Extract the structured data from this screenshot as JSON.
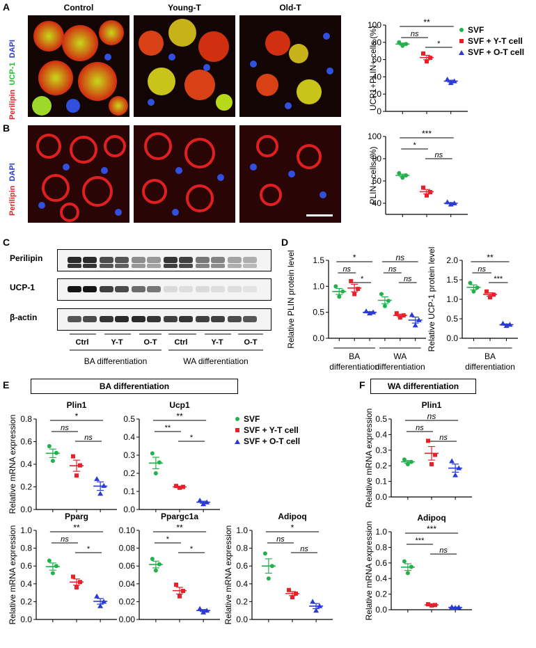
{
  "panels": {
    "A": "A",
    "B": "B",
    "C": "C",
    "D": "D",
    "E": "E",
    "F": "F"
  },
  "micro": {
    "col_titles": [
      "Control",
      "Young-T",
      "Old-T"
    ],
    "stain_a": {
      "dapi": "DAPI",
      "ucp1": "UCP-1",
      "perilipin": "Perilipin"
    },
    "stain_b": {
      "dapi": "DAPI",
      "perilipin": "Perilipin"
    }
  },
  "legend": {
    "entries": [
      "SVF",
      "SVF + Y-T cell",
      "SVF + O-T cell"
    ],
    "colors": [
      "#22b14c",
      "#e8202a",
      "#2a3ad4"
    ]
  },
  "blot": {
    "rows": [
      "Perilipin",
      "UCP-1",
      "β-actin"
    ],
    "lanes": [
      "Ctrl",
      "Y-T",
      "O-T",
      "Ctrl",
      "Y-T",
      "O-T"
    ],
    "groups": [
      "BA differentiation",
      "WA differentiation"
    ]
  },
  "box_titles": {
    "E": "BA differentiation",
    "F": "WA differentiation"
  },
  "chart_data": [
    {
      "id": "A_ucp1",
      "type": "scatter",
      "title": "",
      "ylabel": "UCP1+PLIN+ cells (%)",
      "ylim": [
        0,
        100
      ],
      "yticks": [
        0,
        20,
        40,
        60,
        80,
        100
      ],
      "series": [
        {
          "name": "SVF",
          "values": [
            80,
            76,
            78
          ]
        },
        {
          "name": "SVF + Y-T cell",
          "values": [
            67,
            58,
            62
          ]
        },
        {
          "name": "SVF + O-T cell",
          "values": [
            37,
            33,
            35
          ]
        }
      ],
      "sig": [
        {
          "from": 0,
          "to": 2,
          "label": "**"
        },
        {
          "from": 0,
          "to": 1,
          "label": "ns"
        },
        {
          "from": 1,
          "to": 2,
          "label": "*"
        }
      ]
    },
    {
      "id": "B_plin",
      "type": "scatter",
      "title": "",
      "ylabel": "PLIN+ cells (%)",
      "ylim": [
        30,
        100
      ],
      "yticks": [
        40,
        60,
        80,
        100
      ],
      "series": [
        {
          "name": "SVF",
          "values": [
            67,
            63,
            65
          ]
        },
        {
          "name": "SVF + Y-T cell",
          "values": [
            54,
            47,
            50
          ]
        },
        {
          "name": "SVF + O-T cell",
          "values": [
            41,
            39,
            40
          ]
        }
      ],
      "sig": [
        {
          "from": 0,
          "to": 2,
          "label": "***"
        },
        {
          "from": 0,
          "to": 1,
          "label": "*"
        },
        {
          "from": 1,
          "to": 2,
          "label": "ns"
        }
      ]
    },
    {
      "id": "D_plin",
      "type": "scatter",
      "title": "",
      "ylabel": "Relative PLIN protein level",
      "ylim": [
        0,
        1.5
      ],
      "yticks": [
        0.0,
        0.5,
        1.0,
        1.5
      ],
      "xgroups": [
        "BA differentiation",
        "WA differentiation"
      ],
      "series": [
        {
          "name": "SVF BA",
          "values": [
            1.0,
            0.8,
            0.9
          ]
        },
        {
          "name": "Y-T BA",
          "values": [
            1.1,
            0.85,
            0.95
          ]
        },
        {
          "name": "O-T BA",
          "values": [
            0.52,
            0.48,
            0.5
          ]
        },
        {
          "name": "SVF WA",
          "values": [
            0.85,
            0.62,
            0.72
          ]
        },
        {
          "name": "Y-T WA",
          "values": [
            0.48,
            0.4,
            0.44
          ]
        },
        {
          "name": "O-T WA",
          "values": [
            0.45,
            0.25,
            0.35
          ]
        }
      ],
      "sig": [
        {
          "from": 0,
          "to": 2,
          "label": "*"
        },
        {
          "from": 0,
          "to": 1,
          "label": "ns"
        },
        {
          "from": 1,
          "to": 2,
          "label": "*"
        },
        {
          "from": 3,
          "to": 5,
          "label": "ns"
        },
        {
          "from": 3,
          "to": 4,
          "label": "ns"
        },
        {
          "from": 4,
          "to": 5,
          "label": "ns"
        }
      ]
    },
    {
      "id": "D_ucp1",
      "type": "scatter",
      "title": "",
      "ylabel": "Relative UCP-1 protein level",
      "ylim": [
        0,
        2.0
      ],
      "yticks": [
        0.0,
        0.5,
        1.0,
        1.5,
        2.0
      ],
      "xgroups": [
        "BA differentiation"
      ],
      "series": [
        {
          "name": "SVF",
          "values": [
            1.42,
            1.2,
            1.3
          ]
        },
        {
          "name": "SVF + Y-T cell",
          "values": [
            1.2,
            1.05,
            1.12
          ]
        },
        {
          "name": "SVF + O-T cell",
          "values": [
            0.38,
            0.32,
            0.35
          ]
        }
      ],
      "sig": [
        {
          "from": 0,
          "to": 2,
          "label": "**"
        },
        {
          "from": 0,
          "to": 1,
          "label": "ns"
        },
        {
          "from": 1,
          "to": 2,
          "label": "***"
        }
      ]
    },
    {
      "id": "E_plin1",
      "type": "scatter",
      "title": "Plin1",
      "ylabel": "Relative mRNA expression",
      "ylim": [
        0,
        0.8
      ],
      "yticks": [
        0.0,
        0.2,
        0.4,
        0.6,
        0.8
      ],
      "series": [
        {
          "name": "SVF",
          "values": [
            0.56,
            0.43,
            0.5
          ]
        },
        {
          "name": "SVF + Y-T cell",
          "values": [
            0.47,
            0.3,
            0.39
          ]
        },
        {
          "name": "SVF + O-T cell",
          "values": [
            0.27,
            0.14,
            0.21
          ]
        }
      ],
      "sig": [
        {
          "from": 0,
          "to": 2,
          "label": "*"
        },
        {
          "from": 0,
          "to": 1,
          "label": "ns"
        },
        {
          "from": 1,
          "to": 2,
          "label": "ns"
        }
      ]
    },
    {
      "id": "E_ucp1",
      "type": "scatter",
      "title": "Ucp1",
      "ylabel": "",
      "ylim": [
        0,
        0.5
      ],
      "yticks": [
        0.0,
        0.1,
        0.2,
        0.3,
        0.4,
        0.5
      ],
      "series": [
        {
          "name": "SVF",
          "values": [
            0.31,
            0.2,
            0.26
          ]
        },
        {
          "name": "SVF + Y-T cell",
          "values": [
            0.13,
            0.12,
            0.125
          ]
        },
        {
          "name": "SVF + O-T cell",
          "values": [
            0.05,
            0.03,
            0.04
          ]
        }
      ],
      "sig": [
        {
          "from": 0,
          "to": 2,
          "label": "**"
        },
        {
          "from": 0,
          "to": 1,
          "label": "**"
        },
        {
          "from": 1,
          "to": 2,
          "label": "*"
        }
      ]
    },
    {
      "id": "E_pparg",
      "type": "scatter",
      "title": "Pparg",
      "ylabel": "Relative mRNA expression",
      "ylim": [
        0,
        1.0
      ],
      "yticks": [
        0.0,
        0.2,
        0.4,
        0.6,
        0.8,
        1.0
      ],
      "series": [
        {
          "name": "SVF",
          "values": [
            0.66,
            0.52,
            0.6
          ]
        },
        {
          "name": "SVF + Y-T cell",
          "values": [
            0.48,
            0.36,
            0.42
          ]
        },
        {
          "name": "SVF + O-T cell",
          "values": [
            0.26,
            0.15,
            0.2
          ]
        }
      ],
      "sig": [
        {
          "from": 0,
          "to": 2,
          "label": "**"
        },
        {
          "from": 0,
          "to": 1,
          "label": "ns"
        },
        {
          "from": 1,
          "to": 2,
          "label": "*"
        }
      ]
    },
    {
      "id": "E_ppargc1a",
      "type": "scatter",
      "title": "Ppargc1a",
      "ylabel": "",
      "ylim": [
        0,
        0.1
      ],
      "yticks": [
        0.0,
        0.02,
        0.04,
        0.06,
        0.08,
        0.1
      ],
      "series": [
        {
          "name": "SVF",
          "values": [
            0.068,
            0.055,
            0.062
          ]
        },
        {
          "name": "SVF + Y-T cell",
          "values": [
            0.039,
            0.026,
            0.032
          ]
        },
        {
          "name": "SVF + O-T cell",
          "values": [
            0.012,
            0.008,
            0.01
          ]
        }
      ],
      "sig": [
        {
          "from": 0,
          "to": 2,
          "label": "**"
        },
        {
          "from": 0,
          "to": 1,
          "label": "*"
        },
        {
          "from": 1,
          "to": 2,
          "label": "*"
        }
      ]
    },
    {
      "id": "E_adipoq",
      "type": "scatter",
      "title": "Adipoq",
      "ylabel": "Relative mRNA expression",
      "ylim": [
        0,
        1.0
      ],
      "yticks": [
        0.0,
        0.2,
        0.4,
        0.6,
        0.8,
        1.0
      ],
      "series": [
        {
          "name": "SVF",
          "values": [
            0.74,
            0.46,
            0.6
          ]
        },
        {
          "name": "SVF + Y-T cell",
          "values": [
            0.33,
            0.25,
            0.29
          ]
        },
        {
          "name": "SVF + O-T cell",
          "values": [
            0.2,
            0.1,
            0.15
          ]
        }
      ],
      "sig": [
        {
          "from": 0,
          "to": 2,
          "label": "*"
        },
        {
          "from": 0,
          "to": 1,
          "label": "ns"
        },
        {
          "from": 1,
          "to": 2,
          "label": "ns"
        }
      ]
    },
    {
      "id": "F_plin1",
      "type": "scatter",
      "title": "Plin1",
      "ylabel": "Relative mRNA expression",
      "ylim": [
        0,
        0.5
      ],
      "yticks": [
        0.0,
        0.1,
        0.2,
        0.3,
        0.4,
        0.5
      ],
      "series": [
        {
          "name": "SVF",
          "values": [
            0.24,
            0.21,
            0.225
          ]
        },
        {
          "name": "SVF + Y-T cell",
          "values": [
            0.36,
            0.21,
            0.27
          ]
        },
        {
          "name": "SVF + O-T cell",
          "values": [
            0.23,
            0.14,
            0.185
          ]
        }
      ],
      "sig": [
        {
          "from": 0,
          "to": 2,
          "label": "ns"
        },
        {
          "from": 0,
          "to": 1,
          "label": "ns"
        },
        {
          "from": 1,
          "to": 2,
          "label": "ns"
        }
      ]
    },
    {
      "id": "F_adipoq",
      "type": "scatter",
      "title": "Adipoq",
      "ylabel": "Relative mRNA expression",
      "ylim": [
        0,
        1.0
      ],
      "yticks": [
        0.0,
        0.2,
        0.4,
        0.6,
        0.8,
        1.0
      ],
      "series": [
        {
          "name": "SVF",
          "values": [
            0.62,
            0.47,
            0.55
          ]
        },
        {
          "name": "SVF + Y-T cell",
          "values": [
            0.07,
            0.055,
            0.06
          ]
        },
        {
          "name": "SVF + O-T cell",
          "values": [
            0.035,
            0.025,
            0.03
          ]
        }
      ],
      "sig": [
        {
          "from": 0,
          "to": 2,
          "label": "***"
        },
        {
          "from": 0,
          "to": 1,
          "label": "***"
        },
        {
          "from": 1,
          "to": 2,
          "label": "ns"
        }
      ]
    }
  ]
}
